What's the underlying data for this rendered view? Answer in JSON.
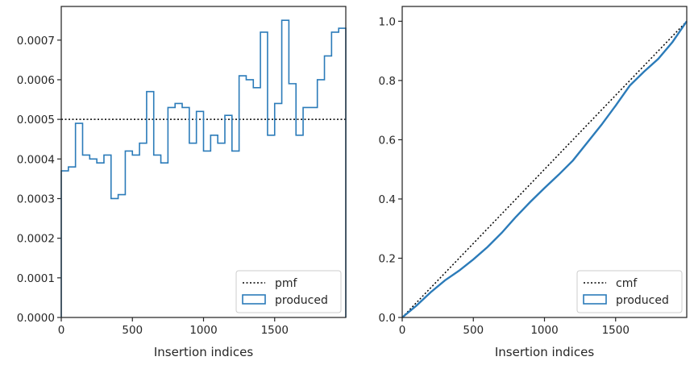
{
  "chart_data": [
    {
      "type": "histogram-step",
      "xlabel": "Insertion indices",
      "ylabel": "",
      "xlim": [
        0,
        2000
      ],
      "ylim": [
        0,
        0.000785
      ],
      "xticks": [
        0,
        500,
        1000,
        1500
      ],
      "xtick_labels": [
        "0",
        "500",
        "1000",
        "1500"
      ],
      "yticks": [
        0,
        0.0001,
        0.0002,
        0.0003,
        0.0004,
        0.0005,
        0.0006,
        0.0007
      ],
      "ytick_labels": [
        "0.0000",
        "0.0001",
        "0.0002",
        "0.0003",
        "0.0004",
        "0.0005",
        "0.0006",
        "0.0007"
      ],
      "bin_width": 50,
      "bin_starts": [
        0,
        50,
        100,
        150,
        200,
        250,
        300,
        350,
        400,
        450,
        500,
        550,
        600,
        650,
        700,
        750,
        800,
        850,
        900,
        950,
        1000,
        1050,
        1100,
        1150,
        1200,
        1250,
        1300,
        1350,
        1400,
        1450,
        1500,
        1550,
        1600,
        1650,
        1700,
        1750,
        1800,
        1850,
        1900,
        1950
      ],
      "produced": [
        0.00037,
        0.00038,
        0.00049,
        0.00041,
        0.0004,
        0.00039,
        0.00041,
        0.0003,
        0.00031,
        0.00042,
        0.00041,
        0.00044,
        0.00057,
        0.00041,
        0.00039,
        0.00053,
        0.00054,
        0.00053,
        0.00044,
        0.00052,
        0.00042,
        0.00046,
        0.00044,
        0.00051,
        0.00042,
        0.00061,
        0.0006,
        0.00058,
        0.00072,
        0.00046,
        0.00054,
        0.00075,
        0.00059,
        0.00046,
        0.00053,
        0.00053,
        0.0006,
        0.00066,
        0.00072,
        0.00073
      ],
      "pmf": 0.0005,
      "legend": {
        "location": "lower right",
        "entries": [
          "pmf",
          "produced"
        ]
      },
      "colors": {
        "produced": "#2b7bb9",
        "pmf": "#000000"
      }
    },
    {
      "type": "line",
      "xlabel": "Insertion indices",
      "ylabel": "",
      "xlim": [
        0,
        2000
      ],
      "ylim": [
        0,
        1.05
      ],
      "xticks": [
        0,
        500,
        1000,
        1500
      ],
      "xtick_labels": [
        "0",
        "500",
        "1000",
        "1500"
      ],
      "yticks": [
        0,
        0.2,
        0.4,
        0.6,
        0.8,
        1.0
      ],
      "ytick_labels": [
        "0.0",
        "0.2",
        "0.4",
        "0.6",
        "0.8",
        "1.0"
      ],
      "produced_cdf": {
        "x": [
          0,
          100,
          200,
          300,
          400,
          500,
          600,
          700,
          800,
          900,
          1000,
          1100,
          1200,
          1300,
          1400,
          1500,
          1600,
          1700,
          1800,
          1900,
          2000
        ],
        "y": [
          0,
          0.04,
          0.085,
          0.125,
          0.158,
          0.196,
          0.238,
          0.286,
          0.34,
          0.39,
          0.437,
          0.482,
          0.53,
          0.59,
          0.65,
          0.715,
          0.783,
          0.83,
          0.873,
          0.93,
          1.0
        ]
      },
      "cmf": {
        "x": [
          0,
          2000
        ],
        "y": [
          0,
          1.0
        ]
      },
      "legend": {
        "location": "lower right",
        "entries": [
          "cmf",
          "produced"
        ]
      },
      "colors": {
        "produced": "#2b7bb9",
        "cmf": "#000000"
      }
    }
  ]
}
